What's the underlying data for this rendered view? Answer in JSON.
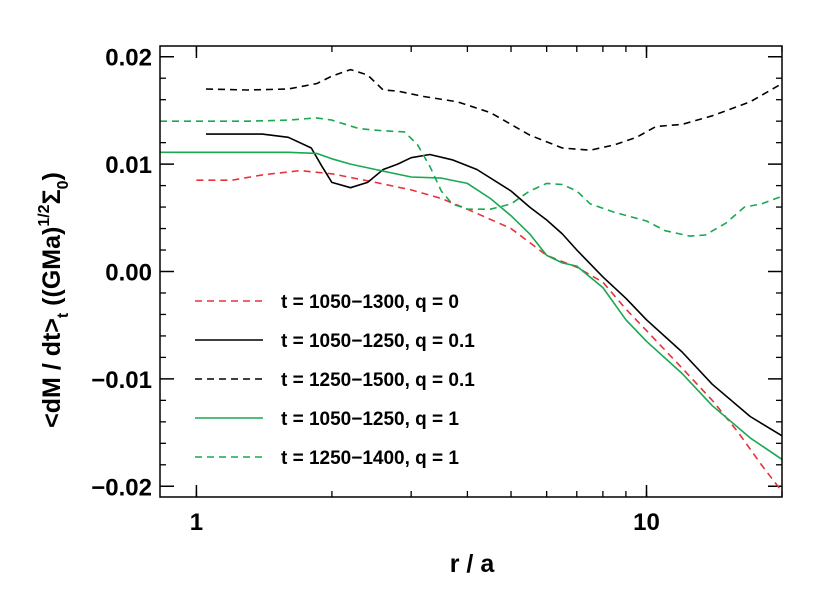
{
  "chart_data": {
    "type": "line",
    "xlabel": "r / a",
    "ylabel": "<dM / dt>t ((GMa)1/2Σ0)",
    "ylabel_parts": {
      "main": "<dM / dt>",
      "sub_t": "t",
      "paren_open": " ((GMa)",
      "sup": "1/2",
      "sigma": "Σ",
      "sub_0": "0",
      "paren_close": ")"
    },
    "x_scale": "log",
    "xlim": [
      0.83,
      20
    ],
    "ylim": [
      -0.021,
      0.021
    ],
    "x_ticks": [
      {
        "value": 1,
        "label": "1"
      },
      {
        "value": 10,
        "label": "10"
      }
    ],
    "y_ticks": [
      {
        "value": 0.02,
        "label": "0.02"
      },
      {
        "value": 0.01,
        "label": "0.01"
      },
      {
        "value": 0.0,
        "label": "0.00"
      },
      {
        "value": -0.01,
        "label": "−0.01"
      },
      {
        "value": -0.02,
        "label": "−0.02"
      }
    ],
    "grid": false,
    "legend_position": "lower-left",
    "series": [
      {
        "name": "t = 1050−1300, q = 0",
        "color": "#e8323a",
        "dash": "dashed",
        "points": [
          [
            1.0,
            0.0085
          ],
          [
            1.2,
            0.0085
          ],
          [
            1.4,
            0.009
          ],
          [
            1.7,
            0.0094
          ],
          [
            2.0,
            0.0091
          ],
          [
            2.5,
            0.0083
          ],
          [
            3.0,
            0.0076
          ],
          [
            3.5,
            0.0068
          ],
          [
            4.0,
            0.0058
          ],
          [
            5.0,
            0.004
          ],
          [
            6.0,
            0.0015
          ],
          [
            7.0,
            0.0004
          ],
          [
            8.0,
            -0.001
          ],
          [
            9.0,
            -0.0035
          ],
          [
            10.0,
            -0.0055
          ],
          [
            12.0,
            -0.009
          ],
          [
            14.0,
            -0.012
          ],
          [
            16.0,
            -0.015
          ],
          [
            18.0,
            -0.018
          ],
          [
            20.0,
            -0.0205
          ]
        ]
      },
      {
        "name": "t = 1050−1250, q = 0.1",
        "color": "#000000",
        "dash": "solid",
        "points": [
          [
            1.05,
            0.0128
          ],
          [
            1.2,
            0.0128
          ],
          [
            1.4,
            0.0128
          ],
          [
            1.6,
            0.0125
          ],
          [
            1.8,
            0.0115
          ],
          [
            1.9,
            0.0098
          ],
          [
            2.0,
            0.0083
          ],
          [
            2.2,
            0.0078
          ],
          [
            2.4,
            0.0083
          ],
          [
            2.6,
            0.0095
          ],
          [
            2.8,
            0.01
          ],
          [
            3.0,
            0.0106
          ],
          [
            3.3,
            0.0109
          ],
          [
            3.7,
            0.0104
          ],
          [
            4.2,
            0.0095
          ],
          [
            5.0,
            0.0075
          ],
          [
            5.5,
            0.006
          ],
          [
            6.0,
            0.0048
          ],
          [
            6.5,
            0.0035
          ],
          [
            7.0,
            0.002
          ],
          [
            8.0,
            -0.0005
          ],
          [
            9.0,
            -0.0025
          ],
          [
            10.0,
            -0.0045
          ],
          [
            12.0,
            -0.0075
          ],
          [
            14.0,
            -0.0105
          ],
          [
            17.0,
            -0.0135
          ],
          [
            20.0,
            -0.0153
          ]
        ]
      },
      {
        "name": "t = 1250−1500, q = 0.1",
        "color": "#000000",
        "dash": "dashed",
        "points": [
          [
            1.05,
            0.017
          ],
          [
            1.3,
            0.0169
          ],
          [
            1.6,
            0.017
          ],
          [
            1.85,
            0.0175
          ],
          [
            2.0,
            0.0182
          ],
          [
            2.2,
            0.0188
          ],
          [
            2.4,
            0.0183
          ],
          [
            2.6,
            0.0169
          ],
          [
            2.8,
            0.0168
          ],
          [
            3.2,
            0.0163
          ],
          [
            3.8,
            0.0158
          ],
          [
            4.5,
            0.0148
          ],
          [
            5.5,
            0.0127
          ],
          [
            6.5,
            0.0115
          ],
          [
            7.5,
            0.0113
          ],
          [
            8.5,
            0.0118
          ],
          [
            9.5,
            0.0125
          ],
          [
            10.5,
            0.0135
          ],
          [
            12.0,
            0.0137
          ],
          [
            14.0,
            0.0145
          ],
          [
            17.0,
            0.0158
          ],
          [
            20.0,
            0.0175
          ]
        ]
      },
      {
        "name": "t = 1050−1250, q = 1",
        "color": "#1aa851",
        "dash": "solid",
        "points": [
          [
            0.83,
            0.0111
          ],
          [
            1.0,
            0.0111
          ],
          [
            1.3,
            0.0111
          ],
          [
            1.6,
            0.0111
          ],
          [
            1.85,
            0.011
          ],
          [
            2.0,
            0.0105
          ],
          [
            2.2,
            0.01
          ],
          [
            2.5,
            0.0095
          ],
          [
            3.0,
            0.0088
          ],
          [
            3.5,
            0.0087
          ],
          [
            4.0,
            0.0082
          ],
          [
            4.5,
            0.0068
          ],
          [
            5.0,
            0.0052
          ],
          [
            5.5,
            0.0035
          ],
          [
            6.0,
            0.0015
          ],
          [
            6.5,
            0.0008
          ],
          [
            7.0,
            0.0005
          ],
          [
            8.0,
            -0.0015
          ],
          [
            9.0,
            -0.0045
          ],
          [
            10.0,
            -0.0065
          ],
          [
            12.0,
            -0.0095
          ],
          [
            14.0,
            -0.0125
          ],
          [
            17.0,
            -0.0155
          ],
          [
            20.0,
            -0.0175
          ]
        ]
      },
      {
        "name": "t = 1250−1400, q = 1",
        "color": "#1aa851",
        "dash": "dashed",
        "points": [
          [
            0.83,
            0.014
          ],
          [
            1.0,
            0.014
          ],
          [
            1.3,
            0.014
          ],
          [
            1.6,
            0.0141
          ],
          [
            1.85,
            0.0143
          ],
          [
            2.0,
            0.0141
          ],
          [
            2.3,
            0.0133
          ],
          [
            2.6,
            0.0131
          ],
          [
            2.9,
            0.013
          ],
          [
            3.1,
            0.0118
          ],
          [
            3.3,
            0.0098
          ],
          [
            3.5,
            0.0075
          ],
          [
            3.7,
            0.0063
          ],
          [
            4.0,
            0.0058
          ],
          [
            4.5,
            0.0058
          ],
          [
            5.0,
            0.0063
          ],
          [
            5.5,
            0.0075
          ],
          [
            6.0,
            0.0082
          ],
          [
            6.5,
            0.0081
          ],
          [
            7.0,
            0.0075
          ],
          [
            7.5,
            0.0063
          ],
          [
            8.5,
            0.0055
          ],
          [
            10.0,
            0.0047
          ],
          [
            11.0,
            0.0038
          ],
          [
            12.5,
            0.0033
          ],
          [
            13.5,
            0.0034
          ],
          [
            15.0,
            0.0045
          ],
          [
            16.5,
            0.006
          ],
          [
            18.0,
            0.0063
          ],
          [
            20.0,
            0.007
          ]
        ]
      }
    ]
  }
}
